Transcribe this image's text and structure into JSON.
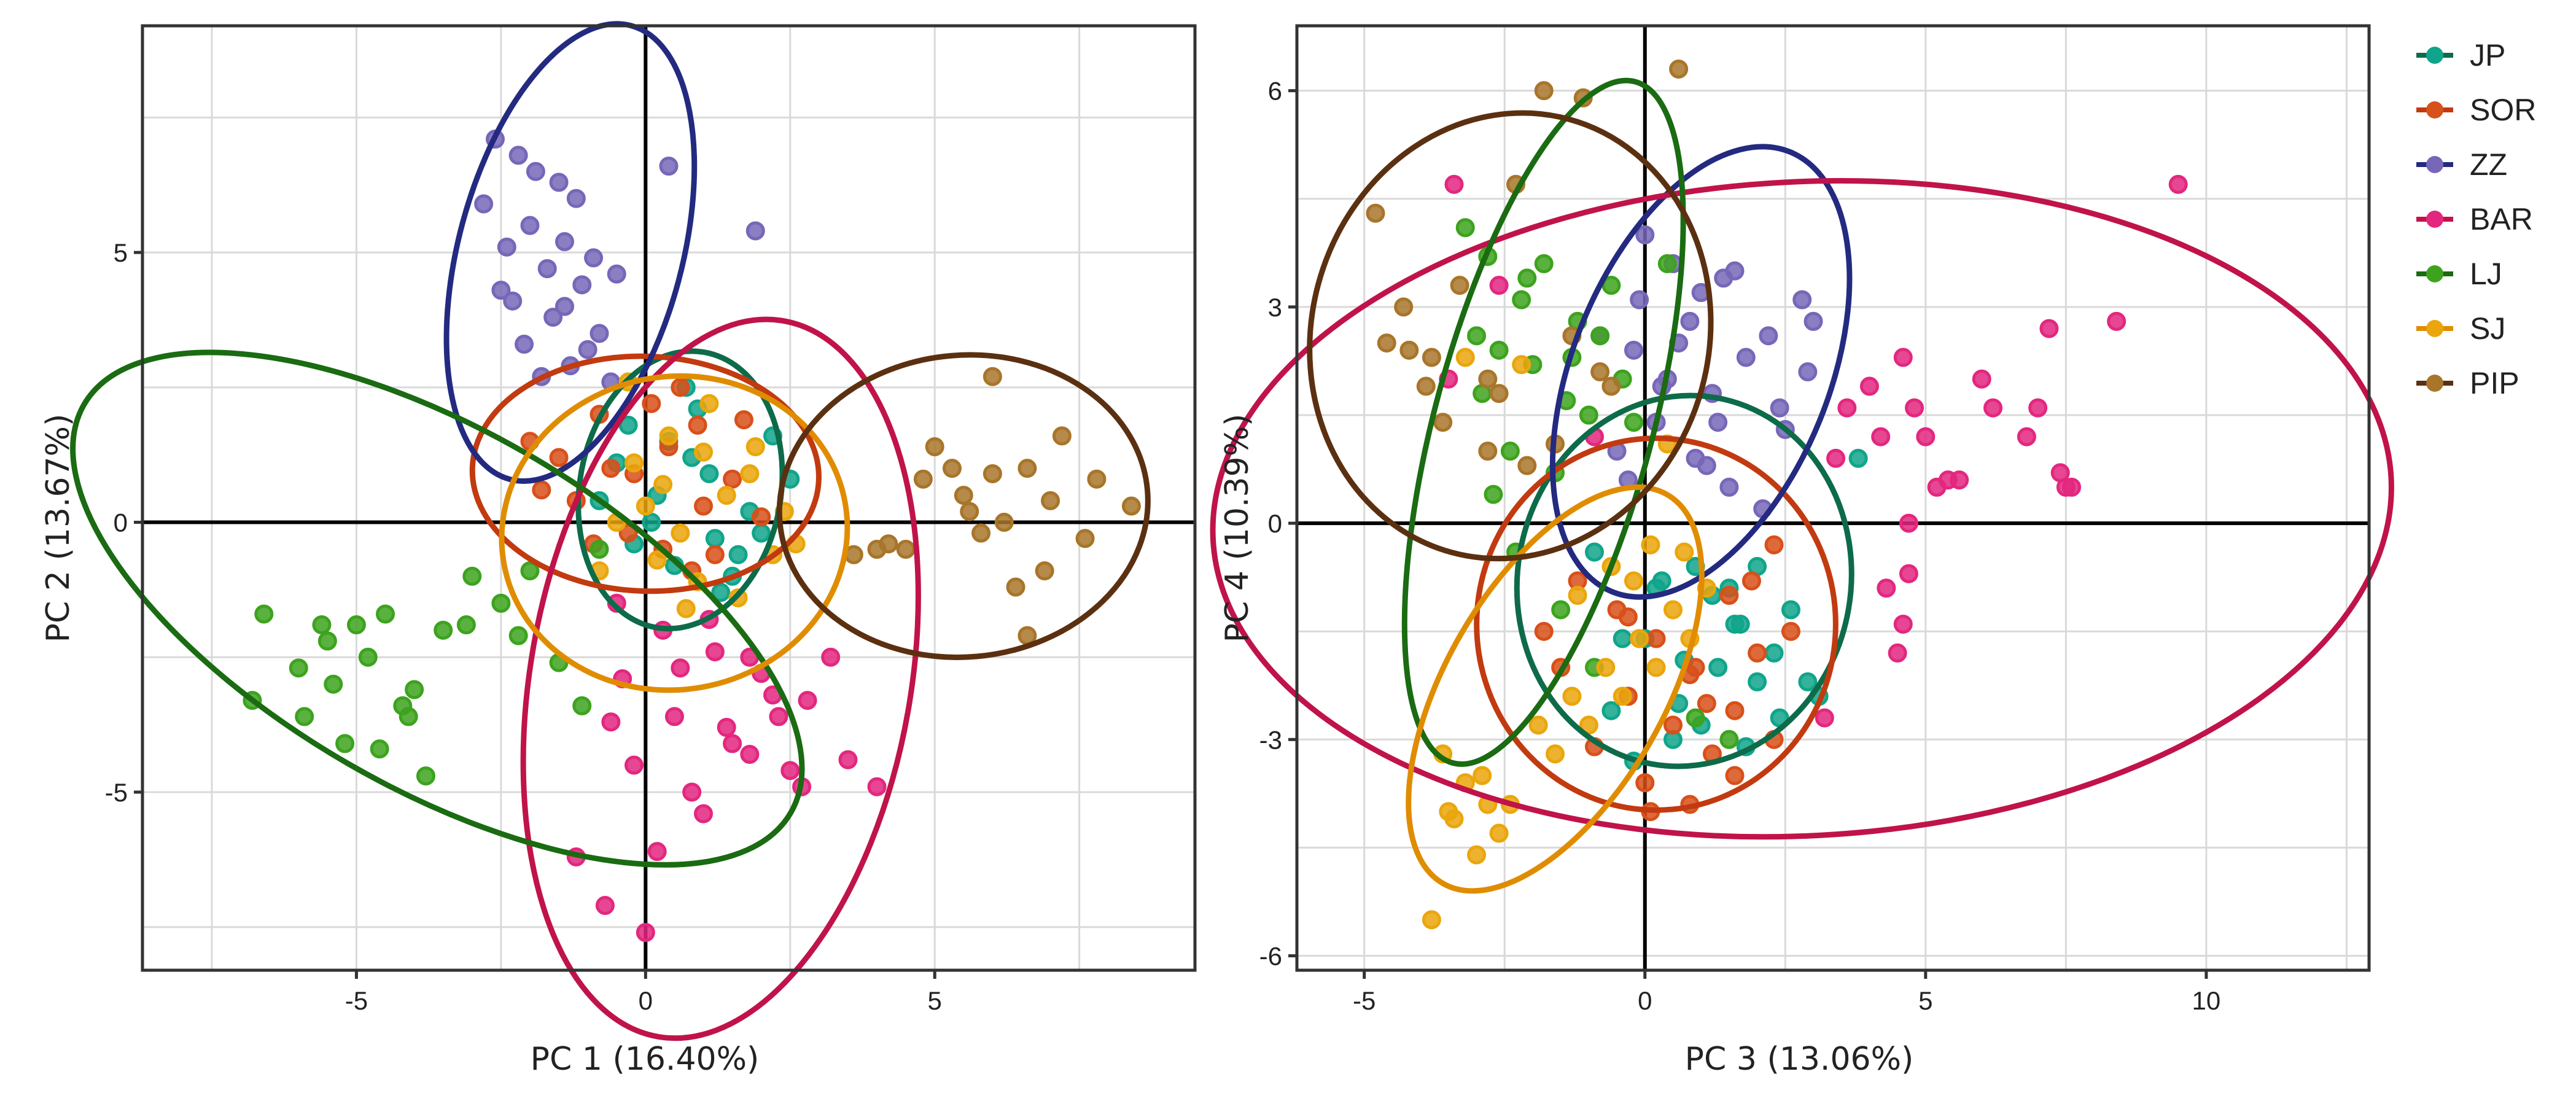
{
  "chart_data": [
    {
      "type": "scatter",
      "title": "",
      "xlabel": "PC 1 (16.40%)",
      "ylabel": "PC 2 (13.67%)",
      "xlim": [
        -8.7,
        9.5
      ],
      "ylim": [
        -8.3,
        9.2
      ],
      "xticks": [
        -5,
        0,
        5
      ],
      "yticks": [
        -5,
        0,
        5
      ],
      "grid": true,
      "series": [
        {
          "name": "JP",
          "x": [
            0.2,
            0.8,
            1.2,
            -0.3,
            1.8,
            2.2,
            0.5,
            -0.8,
            1.5,
            2.5,
            0.9,
            -0.2,
            1.1,
            1.6,
            0.4,
            2.0,
            -0.5,
            0.7,
            1.3,
            0.1
          ],
          "y": [
            0.5,
            1.2,
            -0.3,
            1.8,
            0.2,
            1.6,
            -0.8,
            0.4,
            -1.0,
            0.8,
            2.1,
            -0.4,
            0.9,
            -0.6,
            1.5,
            -0.2,
            1.1,
            2.5,
            -1.3,
            0.0
          ]
        },
        {
          "name": "SOR",
          "x": [
            -1.5,
            -0.8,
            0.3,
            1.0,
            -2.0,
            0.6,
            1.5,
            -0.3,
            -1.2,
            0.9,
            2.0,
            -0.6,
            0.1,
            1.2,
            -1.8,
            0.4,
            -0.9,
            1.7,
            -0.2,
            0.8
          ],
          "y": [
            1.2,
            2.0,
            -0.5,
            0.3,
            1.5,
            2.5,
            0.8,
            -0.2,
            0.4,
            1.8,
            0.1,
            1.0,
            2.2,
            -0.6,
            0.6,
            1.4,
            -0.4,
            1.9,
            0.9,
            -0.9
          ]
        },
        {
          "name": "ZZ",
          "x": [
            -2.6,
            -2.2,
            -1.9,
            -1.5,
            -1.2,
            -2.8,
            -2.0,
            -1.4,
            -0.9,
            -0.5,
            -2.4,
            -1.7,
            -1.1,
            -2.3,
            -1.6,
            -0.8,
            -1.0,
            0.4,
            1.9,
            -2.5,
            -1.3,
            -0.6,
            -2.1,
            -1.8,
            -1.4
          ],
          "y": [
            7.1,
            6.8,
            6.5,
            6.3,
            6.0,
            5.9,
            5.5,
            5.2,
            4.9,
            4.6,
            5.1,
            4.7,
            4.4,
            4.1,
            3.8,
            3.5,
            3.2,
            6.6,
            5.4,
            4.3,
            2.9,
            2.6,
            3.3,
            2.7,
            4.0
          ]
        },
        {
          "name": "BAR",
          "x": [
            -0.5,
            0.3,
            1.2,
            2.0,
            2.8,
            -0.6,
            0.5,
            1.5,
            2.5,
            3.5,
            -0.2,
            0.8,
            1.8,
            2.2,
            -0.4,
            1.0,
            2.7,
            0.2,
            1.4,
            -1.2,
            0.6,
            3.2,
            4.0,
            1.8,
            0.0,
            -0.7,
            2.3,
            1.1
          ],
          "y": [
            -1.5,
            -2.0,
            -2.4,
            -2.8,
            -3.3,
            -3.7,
            -3.6,
            -4.1,
            -4.6,
            -4.4,
            -4.5,
            -5.0,
            -4.3,
            -3.2,
            -2.9,
            -5.4,
            -4.9,
            -6.1,
            -3.8,
            -6.2,
            -2.7,
            -2.5,
            -4.9,
            -2.5,
            -7.6,
            -7.1,
            -3.6,
            -1.8
          ]
        },
        {
          "name": "LJ",
          "x": [
            -6.8,
            -6.0,
            -5.5,
            -5.0,
            -4.5,
            -4.0,
            -3.5,
            -3.0,
            -6.6,
            -5.9,
            -5.2,
            -4.8,
            -4.2,
            -3.8,
            -2.5,
            -2.0,
            -1.5,
            -5.4,
            -4.1,
            -0.8,
            -3.1,
            -2.2,
            -1.1,
            -5.6,
            -4.6
          ],
          "y": [
            -3.3,
            -2.7,
            -2.2,
            -1.9,
            -1.7,
            -3.1,
            -2.0,
            -1.0,
            -1.7,
            -3.6,
            -4.1,
            -2.5,
            -3.4,
            -4.7,
            -1.5,
            -0.9,
            -2.6,
            -3.0,
            -3.6,
            -0.5,
            -1.9,
            -2.1,
            -3.4,
            -1.9,
            -4.2
          ]
        },
        {
          "name": "SJ",
          "x": [
            0.6,
            1.4,
            2.2,
            -0.2,
            0.9,
            1.8,
            -0.5,
            0.4,
            2.6,
            1.1,
            -0.8,
            0.0,
            1.6,
            2.4,
            0.2,
            -0.3,
            1.0,
            0.7,
            1.9,
            0.3
          ],
          "y": [
            -0.2,
            0.5,
            -0.6,
            1.1,
            -1.1,
            0.9,
            0.0,
            1.6,
            -0.4,
            2.2,
            -0.9,
            0.3,
            -1.4,
            0.2,
            -0.7,
            2.6,
            1.3,
            -1.6,
            1.4,
            0.7
          ]
        },
        {
          "name": "PIP",
          "x": [
            3.6,
            4.2,
            4.8,
            5.5,
            6.0,
            6.6,
            7.2,
            7.8,
            8.4,
            5.0,
            5.8,
            6.4,
            7.0,
            4.5,
            6.2,
            6.9,
            7.6,
            5.3,
            4.0,
            6.6,
            5.6,
            6.0
          ],
          "y": [
            -0.6,
            -0.4,
            0.8,
            0.5,
            2.7,
            1.0,
            1.6,
            0.8,
            0.3,
            1.4,
            -0.2,
            -1.2,
            0.4,
            -0.5,
            0.0,
            -0.9,
            -0.3,
            1.0,
            -0.5,
            -2.1,
            0.2,
            0.9
          ]
        }
      ],
      "ellipses": [
        {
          "name": "JP",
          "cx": 0.6,
          "cy": 0.6,
          "rx": 1.8,
          "ry": 2.5,
          "angle": 10
        },
        {
          "name": "SOR",
          "cx": 0.0,
          "cy": 0.9,
          "rx": 3.1,
          "ry": 2.1,
          "angle": 2
        },
        {
          "name": "ZZ",
          "cx": -1.3,
          "cy": 5.0,
          "rx": 2.0,
          "ry": 4.2,
          "angle": 15
        },
        {
          "name": "BAR",
          "cx": 1.3,
          "cy": -2.9,
          "rx": 3.4,
          "ry": 6.5,
          "angle": 10
        },
        {
          "name": "LJ",
          "cx": -3.6,
          "cy": -1.6,
          "rx": 7.3,
          "ry": 3.2,
          "angle": 30
        },
        {
          "name": "SJ",
          "cx": 0.5,
          "cy": -0.2,
          "rx": 3.1,
          "ry": 2.8,
          "angle": -10
        },
        {
          "name": "PIP",
          "cx": 5.5,
          "cy": 0.3,
          "rx": 3.3,
          "ry": 2.7,
          "angle": -5
        }
      ]
    },
    {
      "type": "scatter",
      "title": "",
      "xlabel": "PC 3 (13.06%)",
      "ylabel": "PC 4 (10.39%)",
      "xlim": [
        -6.2,
        12.9
      ],
      "ylim": [
        -6.2,
        6.9
      ],
      "xticks": [
        -5,
        0,
        5,
        10
      ],
      "yticks": [
        -6,
        -3,
        0,
        3,
        6
      ],
      "grid": true,
      "series": [
        {
          "name": "JP",
          "x": [
            0.3,
            0.9,
            1.6,
            2.3,
            2.9,
            -0.4,
            0.6,
            1.3,
            2.0,
            2.6,
            -0.9,
            0.2,
            1.0,
            1.8,
            3.1,
            -0.2,
            0.7,
            1.5,
            2.4,
            0.0,
            1.2,
            2.0,
            -0.6,
            0.5,
            1.7,
            3.8
          ],
          "y": [
            -0.8,
            -0.6,
            -1.4,
            -1.8,
            -2.2,
            -1.6,
            -2.5,
            -2.0,
            -0.6,
            -1.2,
            -0.4,
            -0.9,
            -2.8,
            -3.1,
            -2.4,
            -3.3,
            -1.9,
            -0.9,
            -2.7,
            -1.6,
            -1.0,
            -2.2,
            -2.6,
            -3.0,
            -1.4,
            0.9
          ]
        },
        {
          "name": "SOR",
          "x": [
            -1.2,
            -0.5,
            0.2,
            0.9,
            1.6,
            2.3,
            -1.5,
            -0.3,
            0.5,
            1.2,
            1.9,
            2.6,
            -0.9,
            0.0,
            0.8,
            1.5,
            2.3,
            -1.8,
            0.1,
            1.1,
            2.0,
            -0.3,
            0.8,
            1.6
          ],
          "y": [
            -0.8,
            -1.2,
            -1.6,
            -2.0,
            -2.6,
            -3.0,
            -2.0,
            -2.4,
            -2.8,
            -3.2,
            -0.8,
            -1.5,
            -3.1,
            -3.6,
            -3.9,
            -1.0,
            -0.3,
            -1.5,
            -4.0,
            -2.5,
            -1.8,
            -1.3,
            -2.1,
            -3.5
          ]
        },
        {
          "name": "ZZ",
          "x": [
            0.0,
            0.5,
            1.0,
            1.6,
            2.2,
            2.8,
            -0.2,
            0.4,
            1.2,
            1.8,
            2.5,
            3.0,
            -0.5,
            0.2,
            0.9,
            1.5,
            2.1,
            -0.1,
            0.8,
            1.4,
            2.4,
            -0.8,
            0.6,
            1.3,
            2.9,
            -0.3,
            1.1,
            0.3
          ],
          "y": [
            4.0,
            3.6,
            3.2,
            3.5,
            2.6,
            3.1,
            2.4,
            2.0,
            1.8,
            2.3,
            1.3,
            2.8,
            1.0,
            1.4,
            0.9,
            0.5,
            0.2,
            3.1,
            2.8,
            3.4,
            1.6,
            2.6,
            2.5,
            1.4,
            2.1,
            0.6,
            0.8,
            1.9
          ]
        },
        {
          "name": "BAR",
          "x": [
            -3.4,
            -2.6,
            3.6,
            4.0,
            4.6,
            5.0,
            5.6,
            6.2,
            6.8,
            7.2,
            7.5,
            4.2,
            5.4,
            6.0,
            7.0,
            8.4,
            4.8,
            3.4,
            4.3,
            4.6,
            4.5,
            9.5,
            7.4,
            7.6,
            5.2,
            4.7,
            -3.5,
            3.2,
            4.7,
            -0.9
          ],
          "y": [
            4.7,
            3.3,
            1.6,
            1.9,
            2.3,
            1.2,
            0.6,
            1.6,
            1.2,
            2.7,
            0.5,
            1.2,
            0.6,
            2.0,
            1.6,
            2.8,
            1.6,
            0.9,
            -0.9,
            -1.4,
            -1.8,
            4.7,
            0.7,
            0.5,
            0.5,
            0.0,
            2.0,
            -2.7,
            -0.7,
            1.2
          ]
        },
        {
          "name": "LJ",
          "x": [
            -3.2,
            -2.8,
            -2.2,
            -1.8,
            -1.2,
            -0.6,
            -2.6,
            -2.0,
            -1.4,
            -0.8,
            -0.2,
            -2.9,
            -2.4,
            -1.6,
            -1.0,
            -0.4,
            -2.7,
            -2.1,
            -1.3,
            -3.0,
            -2.3,
            -1.5,
            -0.9,
            0.4,
            0.9,
            1.5
          ],
          "y": [
            4.1,
            3.7,
            3.1,
            3.6,
            2.8,
            3.3,
            2.4,
            2.2,
            1.7,
            2.6,
            1.4,
            1.8,
            1.0,
            0.7,
            1.5,
            2.0,
            0.4,
            3.4,
            2.3,
            2.6,
            -0.4,
            -1.2,
            -2.0,
            3.6,
            -2.7,
            -3.0
          ]
        },
        {
          "name": "SJ",
          "x": [
            -3.8,
            -3.5,
            -3.2,
            -2.8,
            -2.6,
            -3.0,
            -3.6,
            -2.4,
            -2.9,
            -3.4,
            -1.9,
            -1.3,
            -0.7,
            -0.1,
            0.5,
            1.1,
            -1.6,
            -1.0,
            -0.4,
            0.2,
            0.8,
            -1.2,
            -0.6,
            0.1,
            0.7,
            -2.2,
            -0.2,
            0.4,
            -3.2
          ],
          "y": [
            -5.5,
            -4.0,
            -3.6,
            -3.9,
            -4.3,
            -4.6,
            -3.2,
            -3.9,
            -3.5,
            -4.1,
            -2.8,
            -2.4,
            -2.0,
            -1.6,
            -1.2,
            -0.9,
            -3.2,
            -2.8,
            -2.4,
            -2.0,
            -1.6,
            -1.0,
            -0.6,
            -0.3,
            -0.4,
            2.2,
            -0.8,
            1.1,
            2.3
          ]
        },
        {
          "name": "PIP",
          "x": [
            -4.8,
            -4.3,
            -3.8,
            -3.3,
            -2.8,
            -2.3,
            -1.8,
            -1.3,
            -0.8,
            -4.6,
            -3.6,
            -2.6,
            -1.6,
            -0.6,
            0.6,
            -3.9,
            -2.1,
            -1.1,
            -2.8,
            -4.2
          ],
          "y": [
            4.3,
            3.0,
            2.3,
            3.3,
            2.0,
            4.7,
            6.0,
            2.6,
            2.1,
            2.5,
            1.4,
            1.8,
            1.1,
            1.9,
            6.3,
            1.9,
            0.8,
            5.9,
            1.0,
            2.4
          ]
        }
      ],
      "ellipses": [
        {
          "name": "JP",
          "cx": 0.7,
          "cy": -0.8,
          "rx": 2.6,
          "ry": 2.9,
          "angle": 10
        },
        {
          "name": "SOR",
          "cx": 0.2,
          "cy": -1.4,
          "rx": 2.8,
          "ry": 2.9,
          "angle": 0
        },
        {
          "name": "ZZ",
          "cx": 1.0,
          "cy": 2.1,
          "rx": 2.0,
          "ry": 3.7,
          "angle": 22
        },
        {
          "name": "BAR",
          "cx": 2.8,
          "cy": 0.2,
          "rx": 9.2,
          "ry": 5.1,
          "angle": -3
        },
        {
          "name": "LJ",
          "cx": -1.8,
          "cy": 1.4,
          "rx": 1.7,
          "ry": 5.5,
          "angle": 15
        },
        {
          "name": "SJ",
          "cx": -1.6,
          "cy": -2.3,
          "rx": 1.7,
          "ry": 3.5,
          "angle": 30
        },
        {
          "name": "PIP",
          "cx": -2.4,
          "cy": 2.6,
          "rx": 3.1,
          "ry": 3.5,
          "angle": 15
        }
      ]
    }
  ],
  "legend": {
    "position": "right",
    "items": [
      {
        "label": "JP",
        "color": "#10a58a"
      },
      {
        "label": "SOR",
        "color": "#d8501a"
      },
      {
        "label": "ZZ",
        "color": "#7767b8"
      },
      {
        "label": "BAR",
        "color": "#e3277f"
      },
      {
        "label": "LJ",
        "color": "#3da31e"
      },
      {
        "label": "SJ",
        "color": "#eaa60c"
      },
      {
        "label": "PIP",
        "color": "#a8752a"
      }
    ]
  },
  "ellipse_colors": {
    "JP": "#0d6b4a",
    "SOR": "#c23a10",
    "ZZ": "#232a80",
    "BAR": "#c0134a",
    "LJ": "#1a6b12",
    "SJ": "#e08c00",
    "PIP": "#5b3010"
  }
}
